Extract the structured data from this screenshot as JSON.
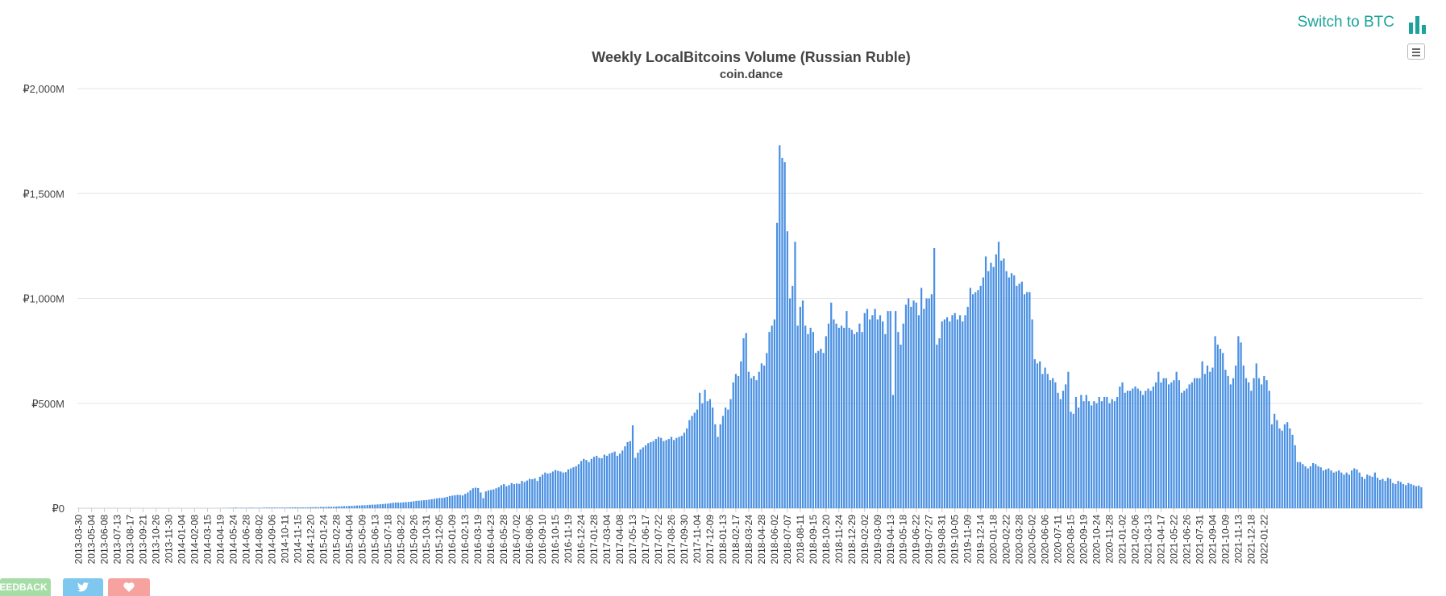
{
  "switch_link": "Switch to BTC",
  "footer": {
    "feedback": "FEEDBACK"
  },
  "colors": {
    "bar": "#4a90e2",
    "grid": "#e6e6e6",
    "accent": "#1aa39a"
  },
  "icons": {
    "switch": "bar-chart-icon",
    "menu": "hamburger-menu-icon",
    "twitter": "twitter-icon",
    "heart": "heart-icon"
  },
  "chart_data": {
    "type": "bar",
    "title": "Weekly LocalBitcoins Volume (Russian Ruble)",
    "subtitle": "coin.dance",
    "xlabel": "",
    "ylabel": "",
    "ylim": [
      0,
      2000
    ],
    "y_ticks": [
      "₽0",
      "₽500M",
      "₽1,000M",
      "₽1,500M",
      "₽2,000M"
    ],
    "grid": true,
    "legend": "none",
    "unit": "₽M",
    "x_tick_labels": [
      "2013-03-30",
      "2013-05-04",
      "2013-06-08",
      "2013-07-13",
      "2013-08-17",
      "2013-09-21",
      "2013-10-26",
      "2013-11-30",
      "2014-01-04",
      "2014-02-08",
      "2014-03-15",
      "2014-04-19",
      "2014-05-24",
      "2014-06-28",
      "2014-08-02",
      "2014-09-06",
      "2014-10-11",
      "2014-11-15",
      "2014-12-20",
      "2015-01-24",
      "2015-02-28",
      "2015-04-04",
      "2015-05-09",
      "2015-06-13",
      "2015-07-18",
      "2015-08-22",
      "2015-09-26",
      "2015-10-31",
      "2015-12-05",
      "2016-01-09",
      "2016-02-13",
      "2016-03-19",
      "2016-04-23",
      "2016-05-28",
      "2016-07-02",
      "2016-08-06",
      "2016-09-10",
      "2016-10-15",
      "2016-11-19",
      "2016-12-24",
      "2017-01-28",
      "2017-03-04",
      "2017-04-08",
      "2017-05-13",
      "2017-06-17",
      "2017-07-22",
      "2017-08-26",
      "2017-09-30",
      "2017-11-04",
      "2017-12-09",
      "2018-01-13",
      "2018-02-17",
      "2018-03-24",
      "2018-04-28",
      "2018-06-02",
      "2018-07-07",
      "2018-08-11",
      "2018-09-15",
      "2018-10-20",
      "2018-11-24",
      "2018-12-29",
      "2019-02-02",
      "2019-03-09",
      "2019-04-13",
      "2019-05-18",
      "2019-06-22",
      "2019-07-27",
      "2019-08-31",
      "2019-10-05",
      "2019-11-09",
      "2019-12-14",
      "2020-01-18",
      "2020-02-22",
      "2020-03-28",
      "2020-05-02",
      "2020-06-06",
      "2020-07-11",
      "2020-08-15",
      "2020-09-19",
      "2020-10-24",
      "2020-11-28",
      "2021-01-02",
      "2021-02-06",
      "2021-03-13",
      "2021-04-17",
      "2021-05-22",
      "2021-06-26",
      "2021-07-31",
      "2021-09-04",
      "2021-10-09",
      "2021-11-13",
      "2021-12-18",
      "2022-01-22"
    ],
    "weekly_values": [
      0,
      0,
      0,
      0,
      0,
      0,
      0,
      0,
      0,
      0,
      0,
      0,
      0,
      0,
      0,
      0,
      0,
      0,
      0,
      0,
      0,
      0,
      0,
      0,
      0,
      0,
      0,
      0,
      0,
      0,
      0,
      0,
      0,
      0,
      0,
      0,
      0,
      0,
      0,
      0,
      0,
      0,
      0,
      0,
      0,
      0,
      0,
      0,
      0,
      0,
      0,
      0,
      0,
      0,
      0,
      0,
      1,
      1,
      1,
      2,
      2,
      3,
      2,
      2,
      2,
      2,
      2,
      3,
      2,
      2,
      2,
      2,
      3,
      3,
      3,
      3,
      3,
      3,
      3,
      3,
      3,
      3,
      4,
      4,
      4,
      4,
      4,
      4,
      4,
      4,
      5,
      5,
      5,
      5,
      6,
      6,
      6,
      7,
      7,
      7,
      8,
      9,
      9,
      10,
      10,
      11,
      11,
      12,
      13,
      13,
      14,
      14,
      15,
      16,
      17,
      17,
      18,
      19,
      20,
      21,
      22,
      24,
      26,
      27,
      27,
      27,
      28,
      29,
      30,
      31,
      33,
      35,
      36,
      37,
      38,
      39,
      41,
      43,
      45,
      47,
      49,
      49,
      51,
      54,
      58,
      60,
      62,
      64,
      63,
      61,
      68,
      75,
      85,
      95,
      98,
      96,
      75,
      48,
      80,
      85,
      87,
      90,
      95,
      100,
      110,
      115,
      105,
      110,
      120,
      115,
      118,
      116,
      130,
      125,
      132,
      140,
      138,
      142,
      130,
      150,
      160,
      170,
      165,
      168,
      175,
      182,
      178,
      175,
      170,
      172,
      185,
      190,
      195,
      200,
      210,
      225,
      235,
      230,
      220,
      235,
      245,
      250,
      240,
      238,
      255,
      250,
      260,
      265,
      270,
      250,
      260,
      275,
      295,
      315,
      320,
      395,
      240,
      265,
      280,
      290,
      300,
      310,
      315,
      320,
      330,
      340,
      335,
      320,
      325,
      330,
      340,
      325,
      335,
      340,
      345,
      360,
      380,
      420,
      440,
      455,
      470,
      550,
      500,
      565,
      510,
      520,
      480,
      400,
      340,
      400,
      440,
      480,
      470,
      520,
      600,
      640,
      630,
      700,
      810,
      835,
      650,
      620,
      630,
      610,
      650,
      690,
      680,
      740,
      840,
      870,
      900,
      1360,
      1730,
      1670,
      1650,
      1320,
      1000,
      1060,
      1270,
      870,
      960,
      990,
      870,
      830,
      860,
      840,
      740,
      750,
      760,
      740,
      820,
      880,
      980,
      900,
      880,
      860,
      870,
      860,
      940,
      860,
      850,
      830,
      840,
      880,
      840,
      930,
      950,
      900,
      920,
      950,
      900,
      920,
      890,
      830,
      940,
      940,
      540,
      940,
      840,
      780,
      880,
      970,
      1000,
      960,
      990,
      980,
      920,
      1050,
      950,
      1000,
      1000,
      1020,
      1240,
      780,
      810,
      890,
      900,
      910,
      890,
      920,
      930,
      900,
      920,
      890,
      920,
      960,
      1050,
      1020,
      1030,
      1040,
      1060,
      1100,
      1200,
      1130,
      1170,
      1150,
      1210,
      1270,
      1180,
      1190,
      1130,
      1100,
      1120,
      1110,
      1060,
      1070,
      1080,
      1020,
      1030,
      1030,
      900,
      710,
      690,
      700,
      640,
      670,
      640,
      610,
      620,
      600,
      550,
      520,
      560,
      590,
      650,
      460,
      450,
      530,
      480,
      540,
      510,
      540,
      510,
      490,
      510,
      500,
      530,
      510,
      530,
      530,
      500,
      520,
      510,
      530,
      580,
      600,
      550,
      560,
      560,
      570,
      580,
      570,
      560,
      540,
      560,
      570,
      560,
      580,
      600,
      650,
      600,
      620,
      620,
      590,
      600,
      610,
      650,
      610,
      550,
      560,
      570,
      590,
      600,
      620,
      620,
      620,
      700,
      640,
      680,
      650,
      670,
      820,
      780,
      760,
      740,
      660,
      630,
      590,
      620,
      680,
      820,
      790,
      680,
      620,
      600,
      560,
      620,
      690,
      620,
      590,
      630,
      610,
      560,
      400,
      450,
      420,
      380,
      370,
      400,
      410,
      380,
      350,
      300,
      220,
      220,
      210,
      200,
      190,
      200,
      215,
      210,
      200,
      195,
      180,
      185,
      190,
      180,
      170,
      175,
      180,
      170,
      160,
      170,
      160,
      180,
      190,
      185,
      170,
      150,
      140,
      160,
      155,
      150,
      170,
      145,
      135,
      140,
      130,
      145,
      140,
      120,
      115,
      130,
      125,
      115,
      110,
      120,
      115,
      110,
      105,
      108,
      100
    ]
  }
}
